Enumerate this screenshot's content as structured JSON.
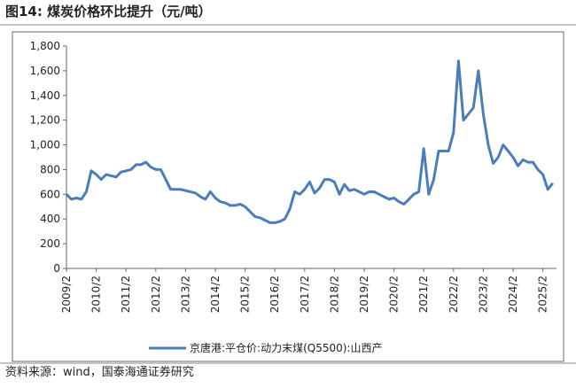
{
  "chart_data": {
    "type": "line",
    "title": "图14:  煤炭价格环比提升（元/吨）",
    "source": "资料来源：wind，国泰海通证券研究",
    "x": [
      "2009/2",
      "2009/4",
      "2009/6",
      "2009/8",
      "2009/10",
      "2009/12",
      "2010/2",
      "2010/4",
      "2010/6",
      "2010/8",
      "2010/10",
      "2010/12",
      "2011/2",
      "2011/4",
      "2011/6",
      "2011/8",
      "2011/10",
      "2011/12",
      "2012/2",
      "2012/4",
      "2012/6",
      "2012/8",
      "2012/10",
      "2012/12",
      "2013/2",
      "2013/4",
      "2013/6",
      "2013/8",
      "2013/10",
      "2013/12",
      "2014/2",
      "2014/4",
      "2014/6",
      "2014/8",
      "2014/10",
      "2014/12",
      "2015/2",
      "2015/4",
      "2015/6",
      "2015/8",
      "2015/10",
      "2015/12",
      "2016/2",
      "2016/4",
      "2016/6",
      "2016/8",
      "2016/10",
      "2016/12",
      "2017/2",
      "2017/4",
      "2017/6",
      "2017/8",
      "2017/10",
      "2017/12",
      "2018/2",
      "2018/4",
      "2018/6",
      "2018/8",
      "2018/10",
      "2018/12",
      "2019/2",
      "2019/4",
      "2019/6",
      "2019/8",
      "2019/10",
      "2019/12",
      "2020/2",
      "2020/4",
      "2020/6",
      "2020/8",
      "2020/10",
      "2020/12",
      "2021/2",
      "2021/4",
      "2021/6",
      "2021/8",
      "2021/10",
      "2021/12",
      "2022/2",
      "2022/4",
      "2022/6",
      "2022/8",
      "2022/10",
      "2022/12",
      "2023/2",
      "2023/4",
      "2023/6",
      "2023/8",
      "2023/10",
      "2023/12",
      "2024/2",
      "2024/4",
      "2024/6",
      "2024/8",
      "2024/10",
      "2024/12",
      "2025/2",
      "2025/4",
      "2025/6"
    ],
    "series": [
      {
        "name": "京唐港:平仓价:动力末煤(Q5500):山西产",
        "color": "#4a7ebb",
        "values": [
          600,
          560,
          570,
          560,
          620,
          790,
          760,
          720,
          760,
          750,
          740,
          780,
          790,
          800,
          840,
          840,
          860,
          820,
          800,
          800,
          720,
          640,
          640,
          640,
          630,
          620,
          610,
          580,
          560,
          620,
          570,
          540,
          530,
          510,
          510,
          520,
          500,
          460,
          420,
          410,
          390,
          370,
          370,
          380,
          400,
          480,
          620,
          600,
          640,
          700,
          610,
          650,
          720,
          720,
          700,
          600,
          680,
          630,
          640,
          620,
          600,
          620,
          620,
          600,
          580,
          560,
          570,
          540,
          520,
          560,
          600,
          620,
          970,
          600,
          720,
          950,
          950,
          950,
          1100,
          1680,
          1200,
          1250,
          1300,
          1600,
          1250,
          1000,
          850,
          900,
          1000,
          950,
          900,
          830,
          880,
          860,
          860,
          800,
          760,
          640,
          690
        ]
      }
    ],
    "ylim": [
      0,
      1800
    ],
    "yticks": [
      0,
      200,
      400,
      600,
      800,
      {
        "value": 1000,
        "label": "1,000"
      },
      {
        "value": 1200,
        "label": "1,200"
      },
      {
        "value": 1400,
        "label": "1,400"
      },
      {
        "value": 1600,
        "label": "1,600"
      },
      {
        "value": 1800,
        "label": "1,800"
      }
    ],
    "xticks": [
      "2009/2",
      "2010/2",
      "2011/2",
      "2012/2",
      "2013/2",
      "2014/2",
      "2015/2",
      "2016/2",
      "2017/2",
      "2018/2",
      "2019/2",
      "2020/2",
      "2021/2",
      "2022/2",
      "2023/2",
      "2024/2",
      "2025/2"
    ]
  }
}
